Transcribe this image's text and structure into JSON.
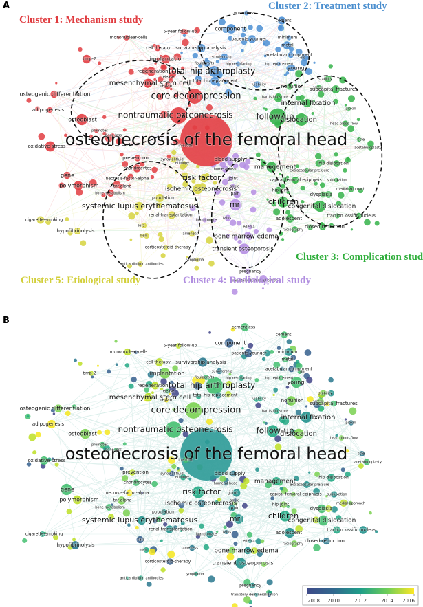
{
  "panels": [
    "A",
    "B"
  ],
  "clusters": [
    "Cluster 1: Mechanism study",
    "Cluster 2: Treatment study",
    "Cluster 3: Complication study",
    "Cluster 4: Radiological study",
    "Cluster 5: Etiological study"
  ],
  "terms": [
    "osteonecrosis of the femoral head",
    "core decompression",
    "nontraumatic osteonecrosis",
    "total hip arthroplasty",
    "follow-up",
    "mesenchymal stem cell",
    "internal fixation",
    "dislocation",
    "risk factor",
    "ischemic osteonecrosis",
    "systemic lupus erythematosus",
    "management",
    "mri",
    "children",
    "congenital dislocation",
    "bone marrow edema",
    "transient osteoporosis",
    "osteoblast",
    "osteogenic differentiation",
    "adipogenesis",
    "oxidative stress",
    "gene",
    "polymorphism",
    "prevention",
    "chondrocytes",
    "necrosis-factor-alpha",
    "tnf-alpha",
    "bone metabolism",
    "population",
    "renal-transplantation",
    "cigarette-smoking",
    "hypofibrinolysis",
    "sars",
    "men",
    "corticosteroid-therapy",
    "lameness",
    "lymphoma",
    "anticardiolipin antibodies",
    "implantation",
    "regeneration",
    "cell therapy",
    "mononuclear-cells",
    "5-year follow-up",
    "bmp-2",
    "survivorship analysis",
    "component",
    "cementless",
    "cement",
    "patients younger",
    "minimum",
    "metal",
    "acetabular component",
    "survivorship",
    "fibulagrafts",
    "hip resurfacing",
    "hip replacement",
    "young",
    "old",
    "stability",
    "screw",
    "subcapital fractures",
    "nonunion",
    "harris hip score",
    "viability",
    "total hip replacement",
    "repair",
    "release",
    "promotes",
    "bone loss",
    "injection",
    "synovial-fluid",
    "etiology",
    "blood supply",
    "humeral head",
    "joint",
    "ankle",
    "pain",
    "talus",
    "ibandronate",
    "edema",
    "pregnancy",
    "transitory demineralization",
    "hip joint",
    "capital femoral epiphysis",
    "extracapsular pressure",
    "dysplasia",
    "hip dislocation",
    "head blood-flow",
    "pipkin",
    "scfe",
    "acetabuloplasty",
    "subluxation",
    "medial approach",
    "traction",
    "ossific nucleus",
    "closed reduction",
    "adolescent",
    "radiography"
  ],
  "colorbar": {
    "ticks": [
      2008,
      2010,
      2012,
      2014,
      2016
    ]
  }
}
